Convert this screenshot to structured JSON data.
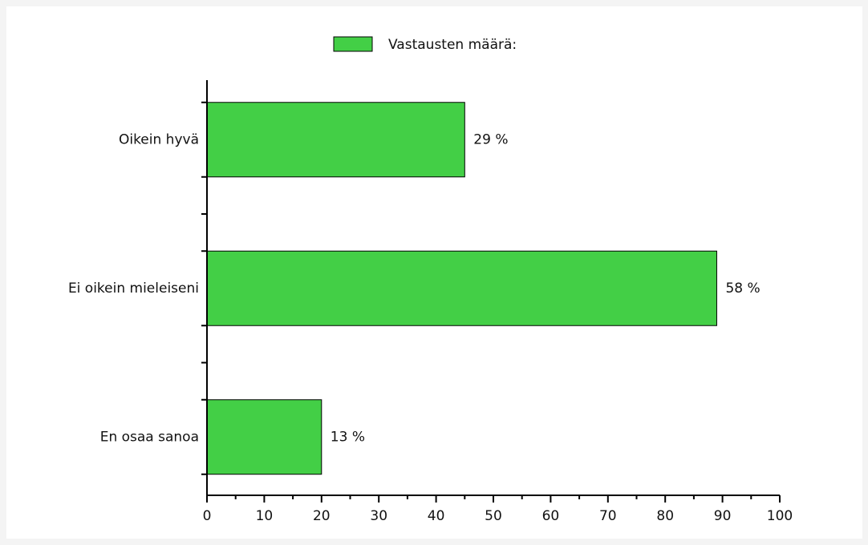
{
  "chart_data": {
    "type": "barh",
    "legend": "Vastausten määrä:",
    "categories": [
      "Oikein hyvä",
      "Ei oikein mieleiseni",
      "En osaa sanoa"
    ],
    "series": [
      {
        "name": "Vastausten määrä:",
        "color": "#43cf46",
        "values": [
          45,
          89,
          20
        ]
      }
    ],
    "percent_labels": [
      "29 %",
      "58 %",
      "13 %"
    ],
    "xlim": [
      0,
      100
    ],
    "xticks": [
      0,
      10,
      20,
      30,
      40,
      50,
      60,
      70,
      80,
      90,
      100
    ],
    "grid": false
  }
}
